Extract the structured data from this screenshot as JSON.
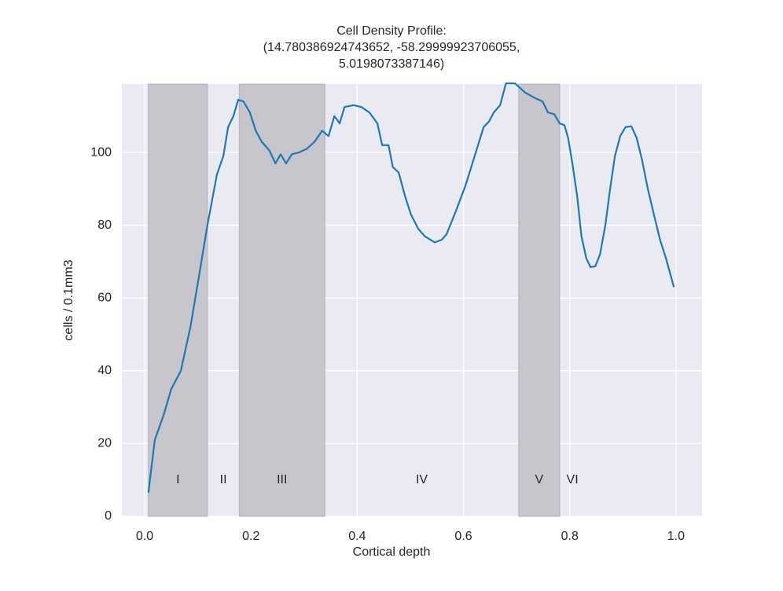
{
  "chart_data": {
    "type": "line",
    "title_lines": [
      "Cell Density Profile:",
      "(14.780386924743652, -58.29999923706055,",
      "5.0198073387146)"
    ],
    "x_label": "Cortical depth",
    "y_label": "cells / 0.1mm3",
    "xlim": [
      -0.043,
      1.049
    ],
    "ylim": [
      0,
      118.8
    ],
    "xticks": [
      {
        "value": 0,
        "label": "0.0"
      },
      0.2,
      0.4,
      0.6,
      0.8,
      {
        "value": 1,
        "label": "1.0"
      }
    ],
    "yticks": [
      0,
      20,
      40,
      60,
      80,
      100
    ],
    "grid": true,
    "layers": [
      {
        "label": "I",
        "start": 0.007,
        "end": 0.118,
        "shaded": true
      },
      {
        "label": "II",
        "start": 0.118,
        "end": 0.178,
        "shaded": false
      },
      {
        "label": "III",
        "start": 0.178,
        "end": 0.339,
        "shaded": true
      },
      {
        "label": "IV",
        "start": 0.339,
        "end": 0.704,
        "shaded": false
      },
      {
        "label": "V",
        "start": 0.704,
        "end": 0.781,
        "shaded": true
      },
      {
        "label": "VI",
        "start": 0.781,
        "end": 0.829,
        "shaded": false
      }
    ],
    "shade_color": "#c6c6cc",
    "series": [
      {
        "color": "#1f77b4",
        "x": [
          0.007,
          0.019,
          0.036,
          0.05,
          0.068,
          0.086,
          0.101,
          0.118,
          0.136,
          0.148,
          0.157,
          0.167,
          0.176,
          0.186,
          0.198,
          0.209,
          0.22,
          0.235,
          0.246,
          0.256,
          0.266,
          0.277,
          0.29,
          0.305,
          0.32,
          0.334,
          0.346,
          0.357,
          0.367,
          0.376,
          0.393,
          0.408,
          0.423,
          0.438,
          0.447,
          0.459,
          0.467,
          0.478,
          0.49,
          0.501,
          0.515,
          0.527,
          0.546,
          0.559,
          0.568,
          0.586,
          0.604,
          0.621,
          0.638,
          0.648,
          0.657,
          0.669,
          0.68,
          0.697,
          0.716,
          0.734,
          0.749,
          0.759,
          0.771,
          0.781,
          0.79,
          0.797,
          0.805,
          0.814,
          0.822,
          0.831,
          0.839,
          0.848,
          0.857,
          0.867,
          0.876,
          0.885,
          0.895,
          0.905,
          0.916,
          0.926,
          0.936,
          0.947,
          0.96,
          0.97,
          0.981,
          0.996
        ],
        "values": [
          6.5,
          21,
          28,
          35,
          40,
          52,
          65,
          80,
          94,
          99,
          107,
          110,
          114.5,
          114,
          111,
          106,
          103,
          100.5,
          97,
          99.5,
          97,
          99.5,
          100,
          101,
          103,
          106,
          104.5,
          110,
          108,
          112.5,
          113,
          112.5,
          111,
          108,
          102,
          102,
          96,
          94.5,
          88,
          83,
          79,
          77,
          75.3,
          76,
          77.5,
          84,
          91,
          99,
          107,
          108.5,
          111,
          113,
          119,
          119,
          116.5,
          115,
          114,
          111,
          110.5,
          108,
          107.5,
          104,
          97,
          88,
          77,
          71,
          68.5,
          68.7,
          72,
          80,
          90,
          99,
          104.5,
          107,
          107.2,
          104,
          98,
          90,
          82,
          76,
          71,
          63
        ]
      }
    ]
  }
}
